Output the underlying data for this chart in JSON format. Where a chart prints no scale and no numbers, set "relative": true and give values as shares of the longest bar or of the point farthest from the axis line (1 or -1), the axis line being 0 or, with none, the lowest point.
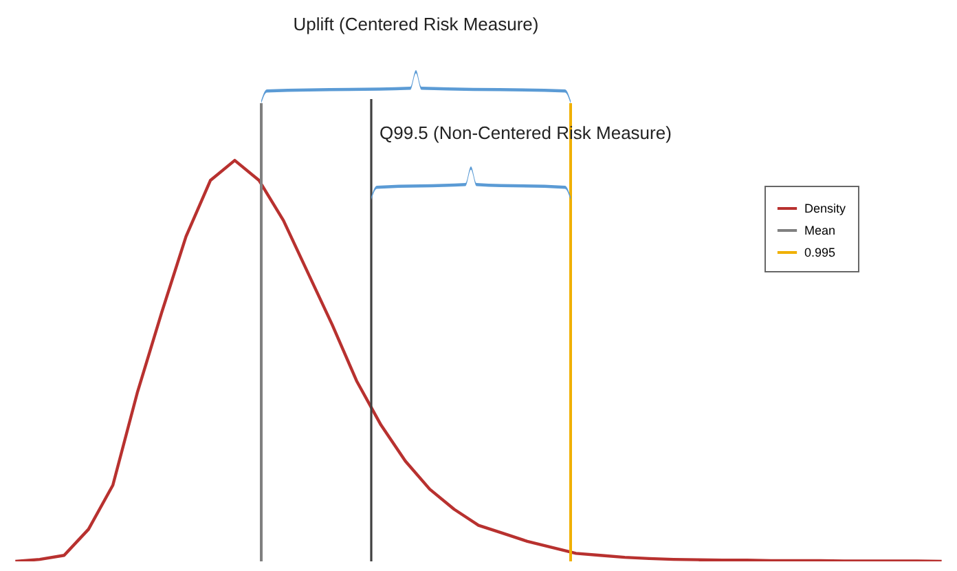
{
  "chart_data": {
    "type": "line",
    "relative": true,
    "categories": [
      null,
      null,
      null,
      null,
      null,
      null,
      null,
      null,
      null,
      null,
      null,
      null,
      null,
      null,
      null,
      null,
      null,
      null,
      null,
      null,
      null,
      null,
      null,
      null,
      null,
      null,
      null,
      null,
      null,
      null,
      null,
      null,
      null,
      null,
      null,
      null,
      null,
      null,
      null
    ],
    "series": [
      {
        "name": "Density",
        "color": "#b8312f",
        "values": [
          0,
          0.005,
          0.015,
          0.08,
          0.19,
          0.42,
          0.62,
          0.81,
          0.95,
          1.0,
          0.95,
          0.85,
          0.72,
          0.59,
          0.45,
          0.34,
          0.25,
          0.18,
          0.13,
          0.09,
          0.07,
          0.05,
          0.035,
          0.02,
          0.015,
          0.01,
          0.007,
          0.005,
          0.004,
          0.003,
          0.003,
          0.002,
          0.002,
          0.002,
          0.001,
          0.001,
          0.001,
          0.001,
          0
        ]
      }
    ],
    "ref_lines": [
      {
        "axis": "x",
        "label": "Mean",
        "color": "#808080"
      },
      {
        "axis": "x",
        "label": "0.995",
        "color": "#f0b000"
      }
    ],
    "annotations": [
      "Uplift (Centered Risk Measure)",
      "Q99.5 (Non-Centered Risk Measure)"
    ],
    "legend": "right",
    "grid": false,
    "line_style": "solid",
    "marker": "none"
  }
}
